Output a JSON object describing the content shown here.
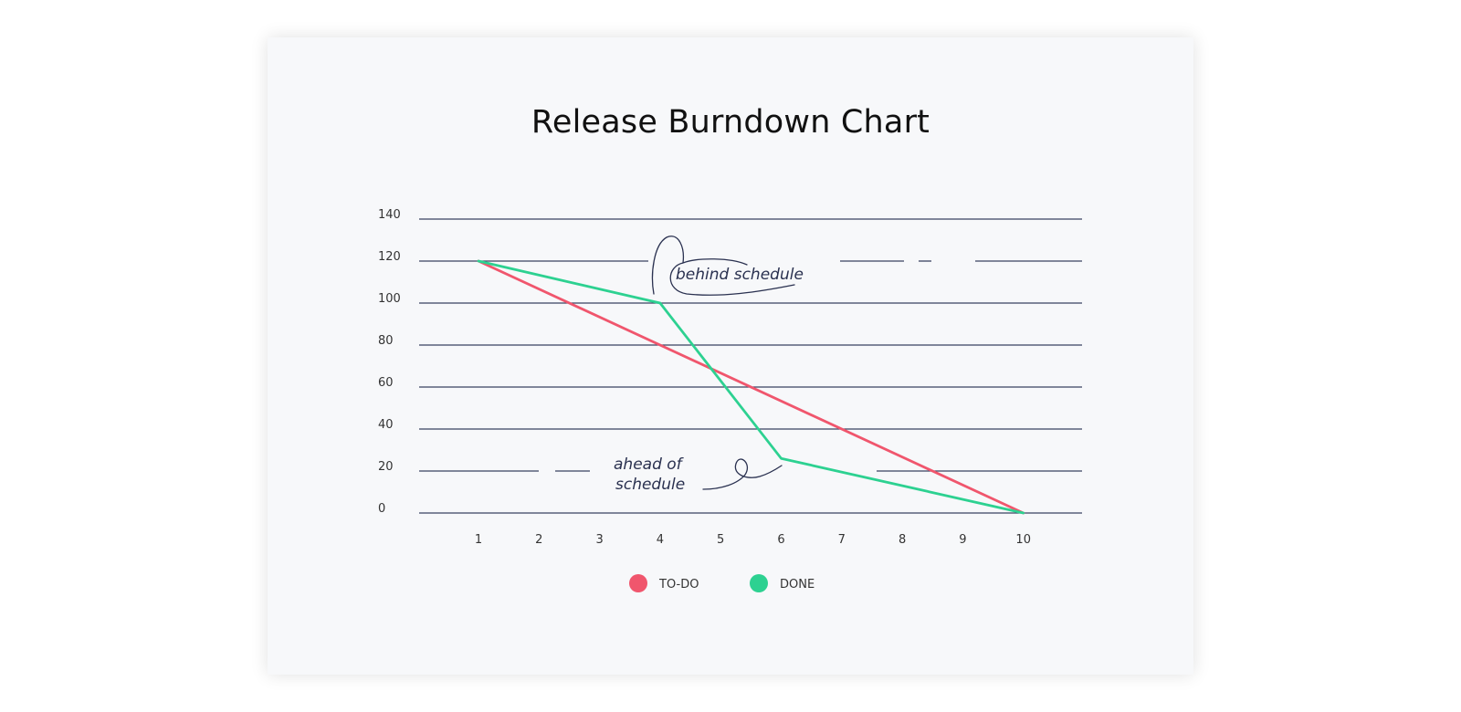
{
  "chart_data": {
    "type": "line",
    "title": "Release Burndown Chart",
    "xlabel": "",
    "ylabel": "",
    "x": [
      1,
      2,
      3,
      4,
      5,
      6,
      7,
      8,
      9,
      10
    ],
    "xlim": [
      0,
      11
    ],
    "ylim": [
      0,
      140
    ],
    "yticks": [
      0,
      20,
      40,
      60,
      80,
      100,
      120,
      140
    ],
    "grid": true,
    "legend_position": "bottom",
    "series": [
      {
        "name": "TO-DO",
        "color": "#f0566d",
        "points": [
          [
            1,
            120
          ],
          [
            10,
            0
          ]
        ]
      },
      {
        "name": "DONE",
        "color": "#2dd191",
        "points": [
          [
            1,
            120
          ],
          [
            4,
            100
          ],
          [
            6,
            26
          ],
          [
            10,
            0
          ]
        ]
      }
    ],
    "annotations": [
      {
        "id": "behind",
        "text": "behind schedule"
      },
      {
        "id": "ahead",
        "text_lines": [
          "ahead of",
          "schedule"
        ]
      }
    ]
  }
}
